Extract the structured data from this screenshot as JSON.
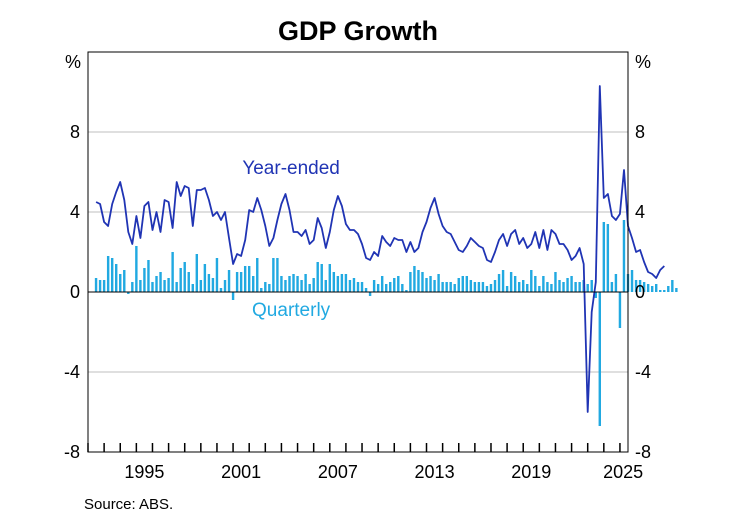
{
  "chart_data": {
    "type": "bar+line",
    "title": "GDP Growth",
    "left_unit": "%",
    "right_unit": "%",
    "source": "Source:   ABS.",
    "x_range": [
      1992.0,
      2025.5
    ],
    "ylim": [
      -8,
      12
    ],
    "y_ticks": [
      8,
      4,
      0,
      -4,
      -8
    ],
    "x_tick_labels": [
      "1995",
      "2001",
      "2007",
      "2013",
      "2019",
      "2025"
    ],
    "x_tick_label_values": [
      1995.5,
      2001.5,
      2007.5,
      2013.5,
      2019.5,
      2025.2
    ],
    "annotations": [
      {
        "text": "Year-ended",
        "series": "year_ended",
        "x": 2004.6,
        "y": 5.9
      },
      {
        "text": "Quarterly",
        "series": "quarterly",
        "x": 2004.6,
        "y": -1.2
      }
    ],
    "colors": {
      "year_ended": "#2034b4",
      "quarterly": "#21a9e1",
      "grid": "#bfbfbf",
      "axis": "#000000"
    },
    "series": [
      {
        "name": "Year-ended",
        "key": "year_ended",
        "kind": "line",
        "start": 1992.5,
        "step": 0.25,
        "values": [
          4.5,
          4.4,
          3.5,
          3.3,
          4.4,
          5.0,
          5.5,
          4.6,
          3.0,
          2.4,
          3.8,
          2.7,
          4.3,
          4.5,
          3.1,
          4.0,
          3.0,
          4.6,
          4.5,
          3.2,
          5.5,
          4.8,
          5.3,
          5.2,
          3.3,
          5.1,
          5.1,
          5.2,
          4.6,
          3.8,
          4.0,
          3.6,
          4.0,
          2.7,
          1.4,
          1.9,
          1.8,
          2.6,
          4.1,
          4.0,
          4.7,
          4.1,
          3.3,
          2.3,
          2.7,
          3.6,
          4.4,
          4.9,
          4.1,
          3.0,
          3.0,
          2.8,
          3.1,
          2.4,
          2.6,
          3.7,
          3.2,
          2.2,
          3.0,
          4.1,
          4.8,
          4.3,
          3.4,
          3.1,
          3.1,
          2.9,
          2.4,
          1.7,
          1.6,
          2.0,
          1.8,
          2.8,
          2.5,
          2.3,
          2.7,
          2.6,
          2.6,
          2.0,
          2.5,
          2.0,
          2.2,
          3.0,
          3.5,
          4.2,
          4.7,
          3.9,
          3.3,
          3.0,
          2.9,
          2.5,
          2.1,
          2.0,
          2.3,
          2.7,
          2.5,
          2.3,
          2.2,
          1.6,
          1.5,
          2.0,
          2.6,
          2.9,
          2.3,
          2.9,
          3.1,
          2.4,
          2.7,
          2.2,
          2.4,
          3.0,
          2.2,
          3.1,
          2.1,
          3.1,
          2.9,
          2.4,
          2.4,
          2.1,
          1.6,
          1.8,
          2.2,
          1.4,
          -6.0,
          -1.0,
          0.5,
          10.3,
          4.7,
          4.9,
          3.8,
          3.6,
          3.9,
          6.1,
          3.3,
          2.7,
          2.0,
          2.1,
          1.5,
          1.0,
          0.9,
          0.7,
          1.1,
          1.3
        ]
      },
      {
        "name": "Quarterly",
        "key": "quarterly",
        "kind": "bar",
        "start": 1992.5,
        "step": 0.25,
        "values": [
          0.7,
          0.6,
          0.6,
          1.8,
          1.7,
          1.4,
          0.9,
          1.1,
          -0.1,
          0.5,
          2.3,
          0.6,
          1.2,
          1.6,
          0.5,
          0.8,
          1.0,
          0.6,
          0.7,
          2.0,
          0.5,
          1.2,
          1.5,
          1.0,
          0.4,
          1.9,
          0.6,
          1.4,
          0.9,
          0.7,
          1.7,
          0.2,
          0.6,
          1.1,
          -0.4,
          1.0,
          1.0,
          1.3,
          1.3,
          0.8,
          1.7,
          0.2,
          0.5,
          0.4,
          1.7,
          1.7,
          0.8,
          0.6,
          0.8,
          0.9,
          0.8,
          0.6,
          0.9,
          0.4,
          0.7,
          1.5,
          1.4,
          0.6,
          1.4,
          1.0,
          0.8,
          0.9,
          0.9,
          0.6,
          0.7,
          0.5,
          0.5,
          0.2,
          -0.2,
          0.6,
          0.4,
          0.8,
          0.4,
          0.5,
          0.7,
          0.8,
          0.4,
          0.1,
          1.0,
          1.3,
          1.1,
          1.0,
          0.7,
          0.8,
          0.6,
          0.9,
          0.5,
          0.5,
          0.5,
          0.4,
          0.7,
          0.8,
          0.8,
          0.6,
          0.5,
          0.5,
          0.5,
          0.3,
          0.4,
          0.6,
          0.9,
          1.1,
          0.3,
          1.0,
          0.8,
          0.5,
          0.6,
          0.4,
          1.1,
          0.8,
          0.3,
          0.8,
          0.5,
          0.4,
          1.0,
          0.6,
          0.5,
          0.7,
          0.8,
          0.5,
          0.5,
          0.6,
          0.4,
          0.6,
          -0.3,
          -6.7,
          3.5,
          3.4,
          0.5,
          0.9,
          -1.8,
          3.6,
          0.9,
          1.1,
          0.6,
          0.6,
          0.5,
          0.4,
          0.3,
          0.4,
          0.1,
          0.1,
          0.3,
          0.6,
          0.2
        ]
      }
    ]
  }
}
